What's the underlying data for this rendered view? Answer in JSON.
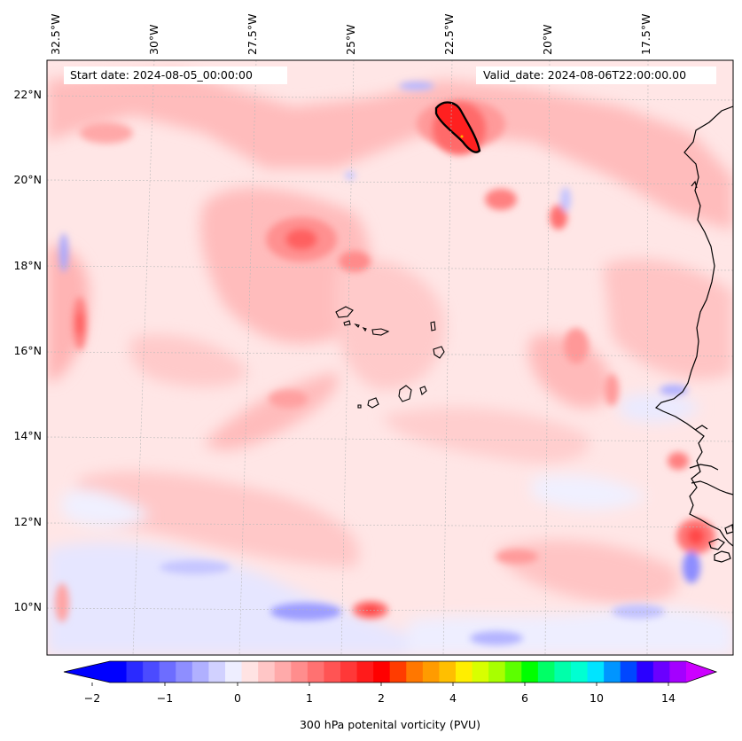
{
  "header": {
    "start_label": "Start date: 2024-08-05_00:00:00",
    "valid_label": "Valid_date: 2024-08-06T22:00:00.00"
  },
  "axes": {
    "lon_labels": [
      "32.5°W",
      "30°W",
      "27.5°W",
      "25°W",
      "22.5°W",
      "20°W",
      "17.5°W"
    ],
    "lat_labels": [
      "22°N",
      "20°N",
      "18°N",
      "16°N",
      "14°N",
      "12°N",
      "10°N"
    ]
  },
  "colorbar": {
    "title": "300 hPa potenital vorticity (PVU)",
    "tick_labels": [
      "−2",
      "−1",
      "0",
      "1",
      "2",
      "4",
      "6",
      "10",
      "14"
    ],
    "colors": [
      "#0000ff",
      "#2a2aff",
      "#4b4bff",
      "#6d6dff",
      "#8e8eff",
      "#b0b0ff",
      "#d1d1ff",
      "#eeeeff",
      "#ffe3e3",
      "#ffc6c6",
      "#ffaaaa",
      "#ff8d8d",
      "#ff7171",
      "#ff5454",
      "#ff3838",
      "#ff1b1b",
      "#ff0000",
      "#ff3c00",
      "#ff7700",
      "#ff9b00",
      "#ffbf00",
      "#ffee00",
      "#d8ff00",
      "#a8ff00",
      "#5cff00",
      "#00ff00",
      "#00ff66",
      "#00ffaa",
      "#00ffd2",
      "#00e4ff",
      "#0095ff",
      "#0047ff",
      "#2a00ff",
      "#6a00ff",
      "#a400ff"
    ],
    "extend_low_color": "#0000ff",
    "extend_high_color": "#cc00ff"
  }
}
